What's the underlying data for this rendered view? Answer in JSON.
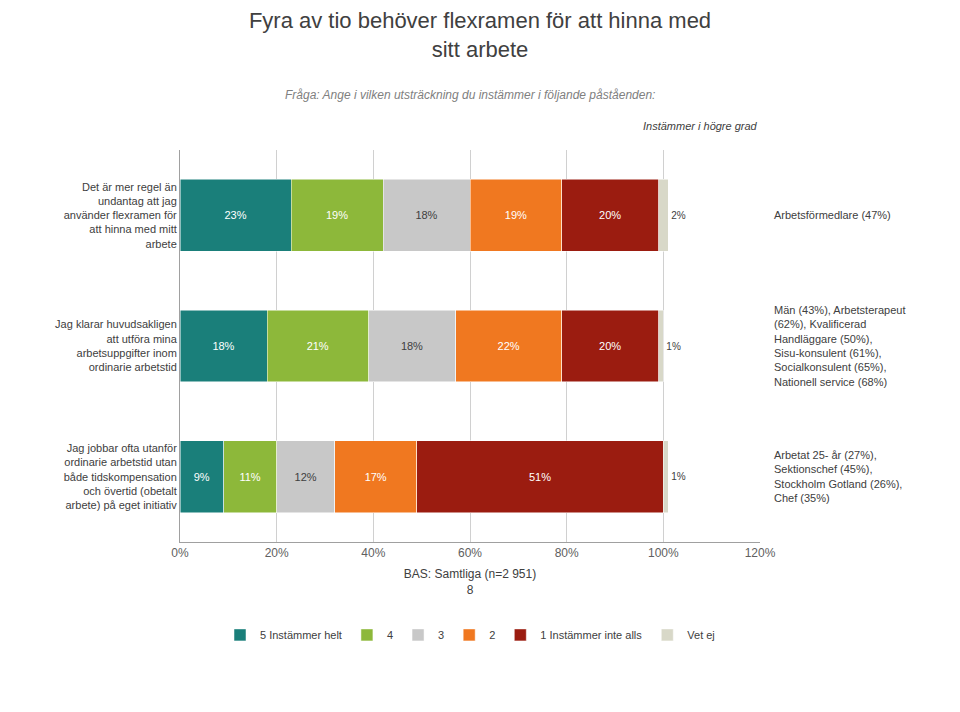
{
  "chart_data": {
    "type": "bar",
    "orientation": "horizontal",
    "stacked": true,
    "title": "Fyra av tio behöver flexramen för att hinna med\nsitt arbete",
    "subtitle": "Fråga: Ange i vilken utsträckning du instämmer i följande påståenden:",
    "xlabel": "BAS: Samtliga (n=2 951)\n8",
    "categories": [
      "Det är mer regel än\nundantag att jag\nanvänder flexramen för\natt hinna med mitt\narbete",
      "Jag klarar huvudsakligen\natt utföra mina\narbetsuppgifter inom\nordinarie arbetstid",
      "Jag jobbar ofta utanför\nordinarie arbetstid utan\nbåde tidskompensation\noch övertid (obetalt\narbete) på eget initiativ"
    ],
    "series": [
      {
        "name": "5 Instämmer helt",
        "color": "#1a7f7a",
        "values": [
          23,
          18,
          9
        ],
        "value_labels": [
          "23%",
          "18%",
          "9%"
        ]
      },
      {
        "name": "4",
        "color": "#8db83a",
        "values": [
          19,
          21,
          11
        ],
        "value_labels": [
          "19%",
          "21%",
          "11%"
        ]
      },
      {
        "name": "3",
        "color": "#c8c8c8",
        "values": [
          18,
          18,
          12
        ],
        "value_labels": [
          "18%",
          "18%",
          "12%"
        ]
      },
      {
        "name": "2",
        "color": "#f07820",
        "values": [
          19,
          22,
          17
        ],
        "value_labels": [
          "19%",
          "22%",
          "17%"
        ]
      },
      {
        "name": "1 Instämmer inte alls",
        "color": "#9b1c10",
        "values": [
          20,
          20,
          51
        ],
        "value_labels": [
          "20%",
          "20%",
          "51%"
        ]
      },
      {
        "name": "Vet ej",
        "color": "#d8d8c8",
        "values": [
          2,
          1,
          1
        ],
        "value_labels": [
          "2%",
          "1%",
          "1%"
        ]
      }
    ],
    "annotations": [
      {
        "text": "Instämmer i högre grad"
      },
      {
        "text": "Arbetsförmedlare (47%)",
        "category": "Det är mer regel än\nundantag att jag\nanvänder flexramen för\natt hinna med mitt\narbete"
      },
      {
        "text": "Män (43%), Arbetsterapeut\n(62%), Kvalificerad\nHandläggare (50%),\nSisu-konsulent (61%),\nSocialkonsulent (65%),\nNationell service (68%)",
        "category": "Jag klarar huvudsakligen\natt utföra mina\narbetsuppgifter inom\nordinarie arbetstid"
      },
      {
        "text": "Arbetat 25- år (27%),\nSektionschef (45%),\nStockholm Gotland (26%),\nChef (35%)",
        "category": "Jag jobbar ofta utanför\nordinarie arbetstid utan\nbåde tidskompensation\noch övertid (obetalt\narbete) på eget initiativ"
      }
    ],
    "xlim": [
      0,
      120
    ],
    "xticks": [
      {
        "value": 0,
        "label": "0%"
      },
      {
        "value": 20,
        "label": "20%"
      },
      {
        "value": 40,
        "label": "40%"
      },
      {
        "value": 60,
        "label": "60%"
      },
      {
        "value": 80,
        "label": "80%"
      },
      {
        "value": 100,
        "label": "100%"
      },
      {
        "value": 120,
        "label": "120%"
      }
    ],
    "grid": true,
    "legend": "bottom",
    "data_labels": true
  }
}
